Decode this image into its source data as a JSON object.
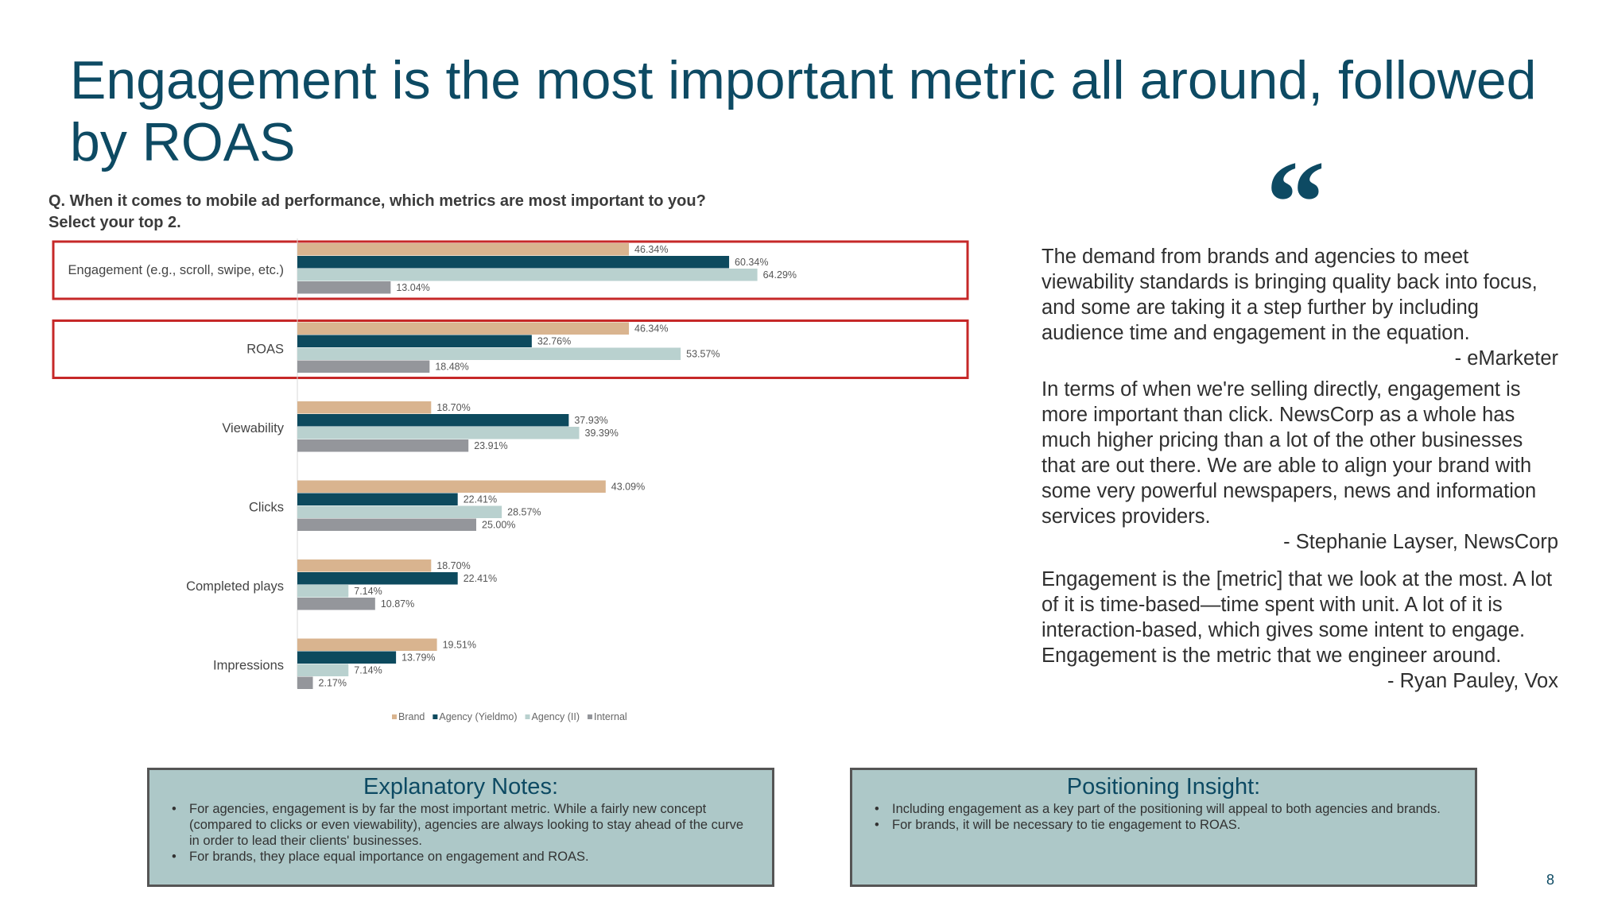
{
  "slide": {
    "title": "Engagement is the most important metric all around, followed by ROAS",
    "question_line1": "Q. When it comes to mobile ad performance, which metrics are most important to you?",
    "question_line2": "Select your top 2.",
    "page_number": "8"
  },
  "chart_data": {
    "type": "bar",
    "orientation": "horizontal",
    "categories": [
      "Engagement (e.g., scroll, swipe, etc.)",
      "ROAS",
      "Viewability",
      "Clicks",
      "Completed plays",
      "Impressions"
    ],
    "series": [
      {
        "name": "Brand",
        "color": "#d9b48f",
        "values": [
          46.34,
          46.34,
          18.7,
          43.09,
          18.7,
          19.51
        ],
        "labels": [
          "46.34%",
          "46.34%",
          "18.70%",
          "43.09%",
          "18.70%",
          "19.51%"
        ]
      },
      {
        "name": "Agency (Yieldmo)",
        "color": "#0d4a5e",
        "values": [
          60.34,
          32.76,
          37.93,
          22.41,
          22.41,
          13.79
        ],
        "labels": [
          "60.34%",
          "32.76%",
          "37.93%",
          "22.41%",
          "22.41%",
          "13.79%"
        ]
      },
      {
        "name": "Agency (II)",
        "color": "#b9d1cf",
        "values": [
          64.29,
          53.57,
          39.39,
          28.57,
          7.14,
          7.14
        ],
        "labels": [
          "64.29%",
          "53.57%",
          "39.39%",
          "28.57%",
          "7.14%",
          "7.14%"
        ]
      },
      {
        "name": "Internal",
        "color": "#94969b",
        "values": [
          13.04,
          18.48,
          23.91,
          25.0,
          10.87,
          2.17
        ],
        "labels": [
          "13.04%",
          "18.48%",
          "23.91%",
          "25.00%",
          "10.87%",
          "2.17%"
        ]
      }
    ],
    "highlighted_categories": [
      "Engagement (e.g., scroll, swipe, etc.)",
      "ROAS"
    ],
    "highlight_color": "#c62828",
    "legend_position": "bottom",
    "grid": false,
    "xlim": [
      0,
      80
    ]
  },
  "quotes": [
    {
      "text": "The demand from brands and agencies to meet viewability standards is bringing quality back into focus, and some are taking it a step further by including audience time and engagement in the equation.",
      "source": "- eMarketer"
    },
    {
      "text": "In terms of when we're selling directly, engagement is more important than click. NewsCorp as a whole has much higher pricing than a lot of the other businesses that are out there. We are able to align your brand with some very powerful newspapers, news and information services providers.",
      "source": "- Stephanie Layser, NewsCorp"
    },
    {
      "text": "Engagement is the [metric] that we look at the most. A lot of it is time-based—time spent with unit. A lot of it is interaction-based, which gives some intent to engage. Engagement is the metric that we engineer around.",
      "source": "- Ryan Pauley, Vox"
    }
  ],
  "quote_mark": "“",
  "explanatory_notes": {
    "title": "Explanatory Notes:",
    "bullets": [
      "For agencies, engagement is by far the most important metric. While a fairly new concept (compared to clicks or even viewability), agencies are always looking to stay ahead of the curve in order to lead their clients' businesses.",
      "For brands, they place equal importance on engagement and ROAS."
    ]
  },
  "positioning_insight": {
    "title": "Positioning Insight:",
    "bullets": [
      "Including engagement as a key part of the positioning will appeal to both agencies and brands.",
      "For brands, it will be necessary to tie engagement to ROAS."
    ]
  },
  "colors": {
    "title": "#0d4a63",
    "box_fill": "#adc8c8"
  }
}
